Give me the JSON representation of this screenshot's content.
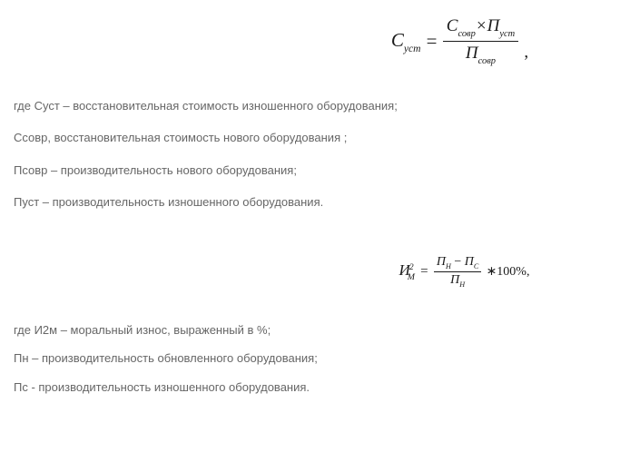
{
  "formula1": {
    "lhs_var": "C",
    "lhs_sub": "уст",
    "num_var1": "C",
    "num_sub1": "совр",
    "times": "×",
    "num_var2": "П",
    "num_sub2": "уст",
    "den_var": "П",
    "den_sub": "совр",
    "trailing": ","
  },
  "para1": "где Суст – восстановительная стоимость изношенного оборудования;",
  "para2": "Ссовр, восстановительная стоимость нового оборудования ;",
  "para3": "Псовр – производительность нового оборудования;",
  "para4": "Пуст – производительность изношенного оборудования.",
  "formula2": {
    "lhs_var": "И",
    "lhs_sub": "М",
    "lhs_sup": "2",
    "num_var1": "П",
    "num_sub1": "Н",
    "minus": "−",
    "num_var2": "П",
    "num_sub2": "С",
    "den_var": "П",
    "den_sub": "Н",
    "tail": "∗100%,",
    "tail_symbols": "∗100%,"
  },
  "para5": "где И2м – моральный износ, выраженный в %;",
  "para6": "Пн – производительность обновленного оборудования;",
  "para7": "Пс - производительность изношенного оборудования."
}
